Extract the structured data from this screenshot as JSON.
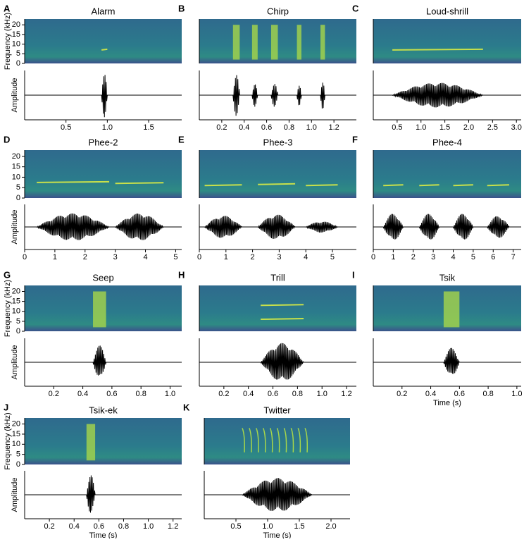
{
  "chart_data": [
    {
      "type": "spectrogram",
      "label": "A",
      "title": "Alarm",
      "ylabel": "Frequency (kHz)",
      "amplitude_label": "Amplitude",
      "xlim": [
        0,
        1.9
      ],
      "xticks": [
        0.5,
        {
          "value": 1,
          "label": "1.0"
        },
        1.5
      ],
      "ylim": [
        0,
        23
      ],
      "yticks": [
        0,
        5,
        10,
        15,
        20
      ]
    },
    {
      "type": "spectrogram",
      "label": "B",
      "title": "Chirp",
      "xlim": [
        0,
        1.4
      ],
      "xticks": [
        0.2,
        0.4,
        0.6,
        0.8,
        {
          "value": 1,
          "label": "1.0"
        },
        1.2
      ],
      "ylim": [
        0,
        23
      ]
    },
    {
      "type": "spectrogram",
      "label": "C",
      "title": "Loud-shrill",
      "xlim": [
        0,
        3.1
      ],
      "xticks": [
        0.5,
        {
          "value": 1,
          "label": "1.0"
        },
        1.5,
        {
          "value": 2,
          "label": "2.0"
        },
        2.5,
        {
          "value": 3,
          "label": "3.0"
        }
      ],
      "ylim": [
        0,
        23
      ]
    },
    {
      "type": "spectrogram",
      "label": "D",
      "title": "Phee-2",
      "amplitude_label": "Amplitude",
      "xlim": [
        0,
        5.2
      ],
      "xticks": [
        0,
        1,
        2,
        3,
        4,
        5
      ],
      "ylim": [
        0,
        23
      ],
      "yticks": [
        0,
        5,
        10,
        15,
        20
      ]
    },
    {
      "type": "spectrogram",
      "label": "E",
      "title": "Phee-3",
      "xlim": [
        0,
        5.9
      ],
      "xticks": [
        0,
        1,
        2,
        3,
        4,
        5
      ],
      "ylim": [
        0,
        23
      ]
    },
    {
      "type": "spectrogram",
      "label": "F",
      "title": "Phee-4",
      "xlim": [
        0,
        7.4
      ],
      "xticks": [
        0,
        1,
        2,
        3,
        4,
        5,
        6,
        7
      ],
      "ylim": [
        0,
        23
      ]
    },
    {
      "type": "spectrogram",
      "label": "G",
      "title": "Seep",
      "ylabel": "Frequency (kHz)",
      "amplitude_label": "Amplitude",
      "xlim": [
        0,
        1.08
      ],
      "xticks": [
        0.2,
        0.4,
        0.6,
        0.8,
        {
          "value": 1,
          "label": "1.0"
        }
      ],
      "ylim": [
        0,
        23
      ],
      "yticks": [
        0,
        5,
        10,
        15,
        20
      ]
    },
    {
      "type": "spectrogram",
      "label": "H",
      "title": "Trill",
      "xlim": [
        0,
        1.28
      ],
      "xticks": [
        0.2,
        0.4,
        0.6,
        0.8,
        {
          "value": 1,
          "label": "1.0"
        },
        1.2
      ],
      "ylim": [
        0,
        23
      ]
    },
    {
      "type": "spectrogram",
      "label": "I",
      "title": "Tsik",
      "xlabel": "Time (s)",
      "xlim": [
        0,
        1.03
      ],
      "xticks": [
        0.2,
        0.4,
        0.6,
        0.8,
        {
          "value": 1,
          "label": "1.0"
        }
      ],
      "ylim": [
        0,
        23
      ]
    },
    {
      "type": "spectrogram",
      "label": "J",
      "title": "Tsik-ek",
      "ylabel": "Frequency (kHz)",
      "amplitude_label": "Amplitude",
      "xlabel": "Time (s)",
      "xlim": [
        0,
        1.27
      ],
      "xticks": [
        0.2,
        0.4,
        0.6,
        0.8,
        {
          "value": 1,
          "label": "1.0"
        },
        1.2
      ],
      "ylim": [
        0,
        23
      ],
      "yticks": [
        0,
        5,
        10,
        15,
        20
      ]
    },
    {
      "type": "spectrogram",
      "label": "K",
      "title": "Twitter",
      "xlabel": "Time (s)",
      "xlim": [
        0,
        2.3
      ],
      "xticks": [
        0.5,
        {
          "value": 1,
          "label": "1.0"
        },
        1.5,
        {
          "value": 2,
          "label": "2.0"
        }
      ],
      "ylim": [
        0,
        23
      ]
    }
  ]
}
